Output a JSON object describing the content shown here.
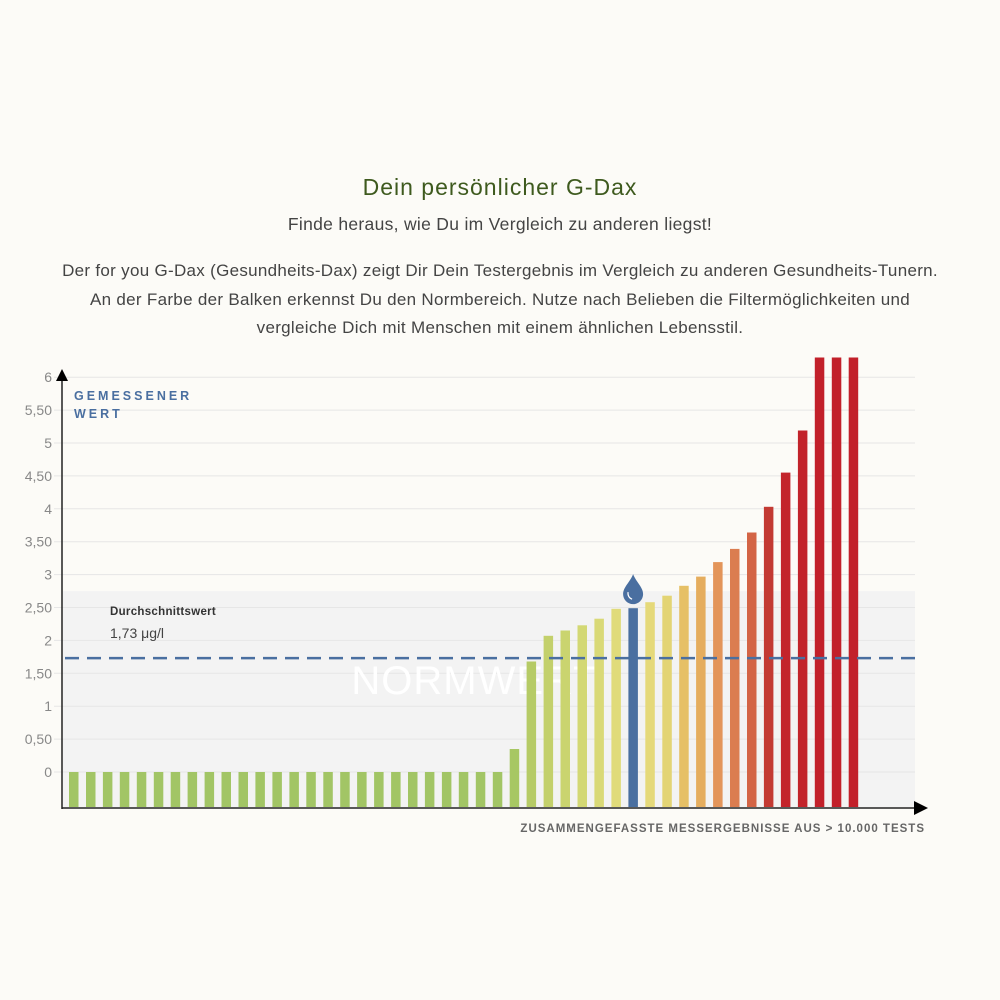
{
  "header": {
    "title": "Dein persönlicher G-Dax",
    "subtitle": "Finde heraus, wie Du im Vergleich zu anderen liegst!",
    "description_lines": [
      "Der for you G-Dax (Gesundheits-Dax) zeigt Dir Dein Testergebnis im Vergleich zu anderen Gesundheits-Tunern.",
      "An der Farbe der Balken erkennst Du den Normbereich. Nutze nach Belieben die Filtermöglichkeiten und",
      "vergleiche Dich mit Menschen mit einem ähnlichen Lebensstil."
    ]
  },
  "chart_data": {
    "type": "bar",
    "ylabel_lines": [
      "GEMESSENER",
      "WERT"
    ],
    "xlabel": "ZUSAMMENGEFASSTE MESSERGEBNISSE AUS > 10.000 TESTS",
    "yticks": [
      "0",
      "0,50",
      "1",
      "1,50",
      "2",
      "2,50",
      "3",
      "3,50",
      "4",
      "4,50",
      "5",
      "5,50",
      "6"
    ],
    "ylim": [
      0,
      6
    ],
    "values": [
      0,
      0,
      0,
      0,
      0,
      0,
      0,
      0,
      0,
      0,
      0,
      0,
      0,
      0,
      0,
      0,
      0,
      0,
      0,
      0,
      0,
      0,
      0,
      0,
      0,
      0,
      0.35,
      1.68,
      2.07,
      2.15,
      2.23,
      2.33,
      2.48,
      2.49,
      2.58,
      2.68,
      2.83,
      2.97,
      3.19,
      3.39,
      3.64,
      4.03,
      4.55,
      5.19,
      6.3,
      6.3,
      6.3
    ],
    "colors": [
      "#a2c565",
      "#a2c565",
      "#a2c565",
      "#a2c565",
      "#a2c565",
      "#a2c565",
      "#a2c565",
      "#a2c565",
      "#a2c565",
      "#a2c565",
      "#a2c565",
      "#a2c565",
      "#a2c565",
      "#a2c565",
      "#a2c565",
      "#a2c565",
      "#a2c565",
      "#a2c565",
      "#a2c565",
      "#a2c565",
      "#a2c565",
      "#a2c565",
      "#a2c565",
      "#a2c565",
      "#a2c565",
      "#a2c565",
      "#a7c763",
      "#b6cb66",
      "#c3d06b",
      "#cad46f",
      "#d3d874",
      "#d9d977",
      "#e0db7a",
      "#4a6fa0",
      "#e5d97a",
      "#e3d474",
      "#e6c066",
      "#e5ad5e",
      "#e3955a",
      "#db7d50",
      "#d36445",
      "#c33a33",
      "#c3242b",
      "#c2232a",
      "#c2202a",
      "#c2202a",
      "#c2202a"
    ],
    "highlight_index": 33,
    "average": {
      "label": "Durchschnittswert",
      "value_text": "1,73 μg/l",
      "value": 1.73,
      "color": "#4a6fa0"
    },
    "norm_range": {
      "label": "NORMWERT",
      "from": 0,
      "to": 2.75
    },
    "legend": "none"
  }
}
